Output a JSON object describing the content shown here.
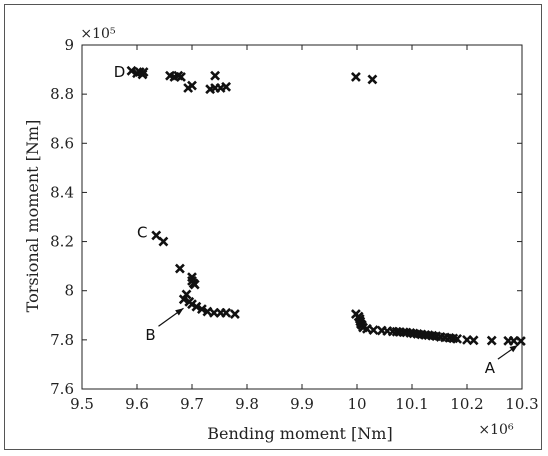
{
  "chart_data": {
    "type": "scatter",
    "xlabel": "Bending moment [Nm]",
    "ylabel": "Torsional moment [Nm]",
    "x_multiplier": "×10⁶",
    "y_multiplier": "×10⁵",
    "xlim": [
      9.5,
      10.3
    ],
    "ylim": [
      7.6,
      9.0
    ],
    "x_ticks": [
      "9.5",
      "9.6",
      "9.7",
      "9.8",
      "9.9",
      "10",
      "10.1",
      "10.2",
      "10.3"
    ],
    "y_ticks": [
      "7.6",
      "7.8",
      "8",
      "8.2",
      "8.4",
      "8.6",
      "8.8",
      "9"
    ],
    "grid": false,
    "marker": "x",
    "marker_color": "#111111",
    "points": [
      {
        "x": 9.59,
        "y": 8.895
      },
      {
        "x": 9.6,
        "y": 8.885
      },
      {
        "x": 9.605,
        "y": 8.89
      },
      {
        "x": 9.61,
        "y": 8.88
      },
      {
        "x": 9.612,
        "y": 8.89
      },
      {
        "x": 9.66,
        "y": 8.875
      },
      {
        "x": 9.668,
        "y": 8.87
      },
      {
        "x": 9.675,
        "y": 8.875
      },
      {
        "x": 9.68,
        "y": 8.87
      },
      {
        "x": 9.693,
        "y": 8.825
      },
      {
        "x": 9.7,
        "y": 8.835
      },
      {
        "x": 9.742,
        "y": 8.875
      },
      {
        "x": 9.733,
        "y": 8.82
      },
      {
        "x": 9.742,
        "y": 8.825
      },
      {
        "x": 9.752,
        "y": 8.825
      },
      {
        "x": 9.762,
        "y": 8.83
      },
      {
        "x": 9.998,
        "y": 8.87
      },
      {
        "x": 10.028,
        "y": 8.86
      },
      {
        "x": 9.635,
        "y": 8.225
      },
      {
        "x": 9.648,
        "y": 8.2
      },
      {
        "x": 9.678,
        "y": 8.09
      },
      {
        "x": 9.7,
        "y": 8.055
      },
      {
        "x": 9.7,
        "y": 8.04
      },
      {
        "x": 9.703,
        "y": 8.03
      },
      {
        "x": 9.705,
        "y": 8.025
      },
      {
        "x": 9.69,
        "y": 7.985
      },
      {
        "x": 9.685,
        "y": 7.965
      },
      {
        "x": 9.695,
        "y": 7.955
      },
      {
        "x": 9.7,
        "y": 7.945
      },
      {
        "x": 9.708,
        "y": 7.935
      },
      {
        "x": 9.718,
        "y": 7.925
      },
      {
        "x": 9.728,
        "y": 7.915
      },
      {
        "x": 9.74,
        "y": 7.91
      },
      {
        "x": 9.752,
        "y": 7.91
      },
      {
        "x": 9.762,
        "y": 7.91
      },
      {
        "x": 9.778,
        "y": 7.905
      },
      {
        "x": 9.998,
        "y": 7.905
      },
      {
        "x": 10.003,
        "y": 7.895
      },
      {
        "x": 10.005,
        "y": 7.885
      },
      {
        "x": 10.006,
        "y": 7.875
      },
      {
        "x": 10.007,
        "y": 7.865
      },
      {
        "x": 10.009,
        "y": 7.86
      },
      {
        "x": 10.011,
        "y": 7.85
      },
      {
        "x": 10.018,
        "y": 7.845
      },
      {
        "x": 10.03,
        "y": 7.84
      },
      {
        "x": 10.045,
        "y": 7.838
      },
      {
        "x": 10.055,
        "y": 7.836
      },
      {
        "x": 10.065,
        "y": 7.834
      },
      {
        "x": 10.072,
        "y": 7.833
      },
      {
        "x": 10.078,
        "y": 7.832
      },
      {
        "x": 10.085,
        "y": 7.831
      },
      {
        "x": 10.09,
        "y": 7.83
      },
      {
        "x": 10.097,
        "y": 7.828
      },
      {
        "x": 10.103,
        "y": 7.826
      },
      {
        "x": 10.11,
        "y": 7.824
      },
      {
        "x": 10.117,
        "y": 7.822
      },
      {
        "x": 10.124,
        "y": 7.82
      },
      {
        "x": 10.13,
        "y": 7.819
      },
      {
        "x": 10.137,
        "y": 7.817
      },
      {
        "x": 10.144,
        "y": 7.815
      },
      {
        "x": 10.152,
        "y": 7.812
      },
      {
        "x": 10.16,
        "y": 7.81
      },
      {
        "x": 10.168,
        "y": 7.808
      },
      {
        "x": 10.175,
        "y": 7.806
      },
      {
        "x": 10.182,
        "y": 7.804
      },
      {
        "x": 10.2,
        "y": 7.8
      },
      {
        "x": 10.212,
        "y": 7.798
      },
      {
        "x": 10.245,
        "y": 7.797
      },
      {
        "x": 10.275,
        "y": 7.796
      },
      {
        "x": 10.285,
        "y": 7.796
      },
      {
        "x": 10.298,
        "y": 7.795
      }
    ],
    "annotations": [
      {
        "label": "D",
        "x": 9.59,
        "y": 8.895
      },
      {
        "label": "C",
        "x": 9.635,
        "y": 8.225
      },
      {
        "label": "B",
        "x": 9.69,
        "y": 7.945
      },
      {
        "label": "A",
        "x": 10.298,
        "y": 7.795
      }
    ]
  }
}
